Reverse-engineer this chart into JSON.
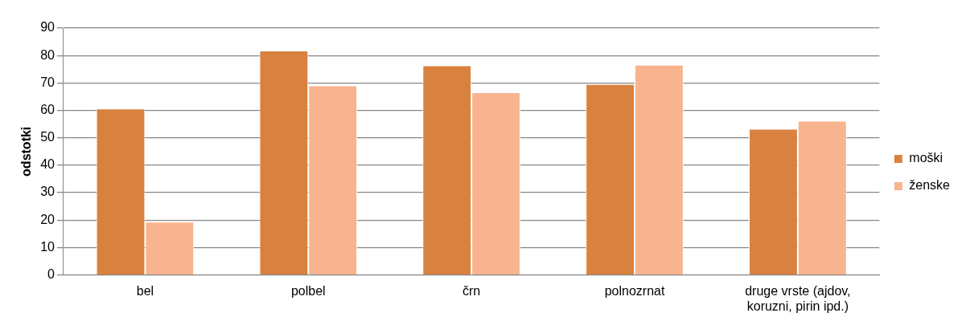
{
  "chart_data": {
    "type": "bar",
    "ylabel": "odstotki",
    "categories": [
      "bel",
      "polbel",
      "črn",
      "polnozrnat",
      "druge vrste (ajdov, koruzni, pirin ipd.)"
    ],
    "series": [
      {
        "name": "moški",
        "color": "#d9823f",
        "values": [
          60.7,
          81.8,
          76.4,
          69.6,
          53.3
        ]
      },
      {
        "name": "ženske",
        "color": "#f7b48f",
        "values": [
          19.4,
          69.1,
          66.6,
          76.6,
          56.2
        ]
      }
    ],
    "ylim": [
      0,
      90
    ],
    "yticks": [
      0,
      10,
      20,
      30,
      40,
      50,
      60,
      70,
      80,
      90
    ],
    "grid": "y",
    "legend": "right"
  }
}
